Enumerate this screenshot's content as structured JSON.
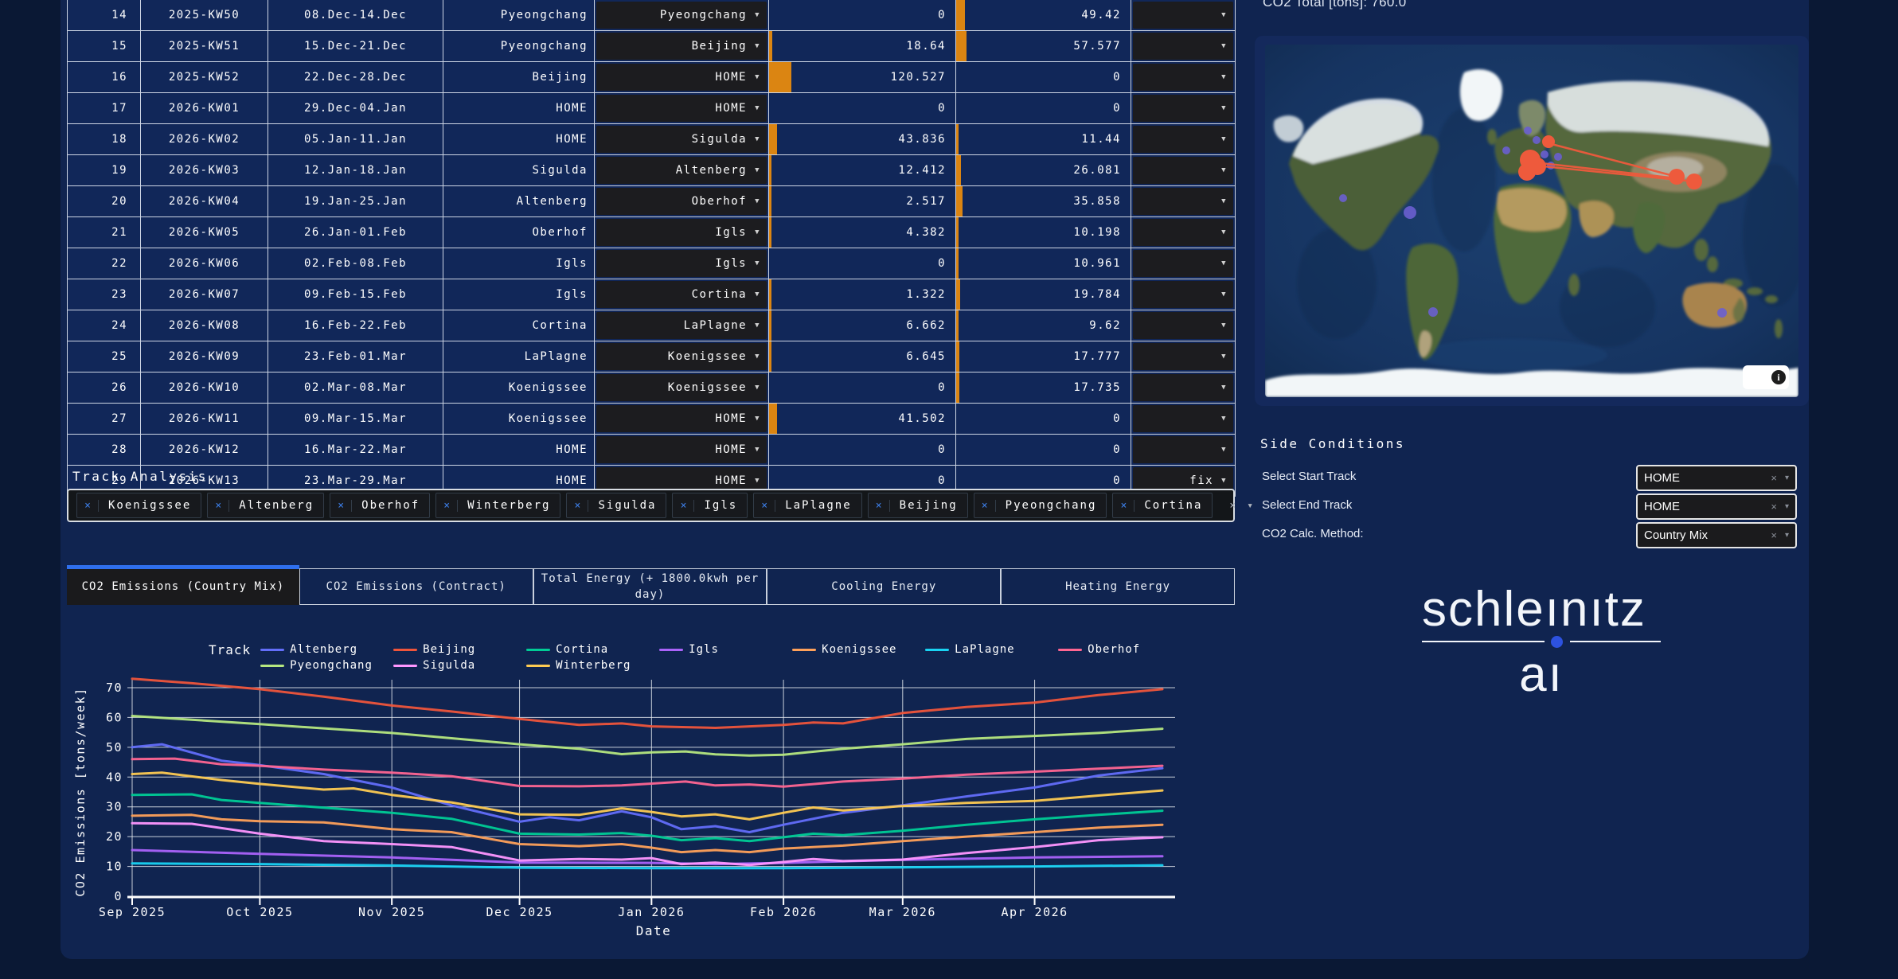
{
  "header": {
    "co2_total": "CO2 Total [tons]: 760.0"
  },
  "table": {
    "rows": [
      {
        "n": "14",
        "week": "2025-KW50",
        "dates": "08.Dec-14.Dec",
        "from": "Pyeongchang",
        "to": "Pyeongchang",
        "v1": "0",
        "v2": "49.42",
        "action": ""
      },
      {
        "n": "15",
        "week": "2025-KW51",
        "dates": "15.Dec-21.Dec",
        "from": "Pyeongchang",
        "to": "Beijing",
        "v1": "18.64",
        "v2": "57.577",
        "action": ""
      },
      {
        "n": "16",
        "week": "2025-KW52",
        "dates": "22.Dec-28.Dec",
        "from": "Beijing",
        "to": "HOME",
        "v1": "120.527",
        "v2": "0",
        "action": ""
      },
      {
        "n": "17",
        "week": "2026-KW01",
        "dates": "29.Dec-04.Jan",
        "from": "HOME",
        "to": "HOME",
        "v1": "0",
        "v2": "0",
        "action": ""
      },
      {
        "n": "18",
        "week": "2026-KW02",
        "dates": "05.Jan-11.Jan",
        "from": "HOME",
        "to": "Sigulda",
        "v1": "43.836",
        "v2": "11.44",
        "action": ""
      },
      {
        "n": "19",
        "week": "2026-KW03",
        "dates": "12.Jan-18.Jan",
        "from": "Sigulda",
        "to": "Altenberg",
        "v1": "12.412",
        "v2": "26.081",
        "action": ""
      },
      {
        "n": "20",
        "week": "2026-KW04",
        "dates": "19.Jan-25.Jan",
        "from": "Altenberg",
        "to": "Oberhof",
        "v1": "2.517",
        "v2": "35.858",
        "action": ""
      },
      {
        "n": "21",
        "week": "2026-KW05",
        "dates": "26.Jan-01.Feb",
        "from": "Oberhof",
        "to": "Igls",
        "v1": "4.382",
        "v2": "10.198",
        "action": ""
      },
      {
        "n": "22",
        "week": "2026-KW06",
        "dates": "02.Feb-08.Feb",
        "from": "Igls",
        "to": "Igls",
        "v1": "0",
        "v2": "10.961",
        "action": ""
      },
      {
        "n": "23",
        "week": "2026-KW07",
        "dates": "09.Feb-15.Feb",
        "from": "Igls",
        "to": "Cortina",
        "v1": "1.322",
        "v2": "19.784",
        "action": ""
      },
      {
        "n": "24",
        "week": "2026-KW08",
        "dates": "16.Feb-22.Feb",
        "from": "Cortina",
        "to": "LaPlagne",
        "v1": "6.662",
        "v2": "9.62",
        "action": ""
      },
      {
        "n": "25",
        "week": "2026-KW09",
        "dates": "23.Feb-01.Mar",
        "from": "LaPlagne",
        "to": "Koenigssee",
        "v1": "6.645",
        "v2": "17.777",
        "action": ""
      },
      {
        "n": "26",
        "week": "2026-KW10",
        "dates": "02.Mar-08.Mar",
        "from": "Koenigssee",
        "to": "Koenigssee",
        "v1": "0",
        "v2": "17.735",
        "action": ""
      },
      {
        "n": "27",
        "week": "2026-KW11",
        "dates": "09.Mar-15.Mar",
        "from": "Koenigssee",
        "to": "HOME",
        "v1": "41.502",
        "v2": "0",
        "action": ""
      },
      {
        "n": "28",
        "week": "2026-KW12",
        "dates": "16.Mar-22.Mar",
        "from": "HOME",
        "to": "HOME",
        "v1": "0",
        "v2": "0",
        "action": ""
      },
      {
        "n": "29",
        "week": "2026-KW13",
        "dates": "23.Mar-29.Mar",
        "from": "HOME",
        "to": "HOME",
        "v1": "0",
        "v2": "0",
        "action": "fix"
      }
    ]
  },
  "track_analysis": {
    "title": "Track Analysis",
    "selected": [
      "Koenigssee",
      "Altenberg",
      "Oberhof",
      "Winterberg",
      "Sigulda",
      "Igls",
      "LaPlagne",
      "Beijing",
      "Pyeongchang",
      "Cortina"
    ],
    "clear_icon": "×",
    "caret_icon": "▾"
  },
  "tabs": {
    "active": 0,
    "items": [
      {
        "label": "CO2 Emissions (Country Mix)"
      },
      {
        "label": "CO2 Emissions (Contract)"
      },
      {
        "label": "Total Energy (+ 1800.0kwh per day)"
      },
      {
        "label": "Cooling Energy"
      },
      {
        "label": "Heating Energy"
      }
    ]
  },
  "chart_data": {
    "type": "line",
    "legend_title": "Track",
    "xlabel": "Date",
    "ylabel": "CO2 Emissions [tons/week]",
    "ylim": [
      0,
      73
    ],
    "x_axis_note": "days since 2025-09-01, weekly data Sep 2025 - Apr 2026",
    "x_ticks": [
      {
        "label": "Sep 2025",
        "day": 0
      },
      {
        "label": "Oct 2025",
        "day": 30
      },
      {
        "label": "Nov 2025",
        "day": 61
      },
      {
        "label": "Dec 2025",
        "day": 91
      },
      {
        "label": "Jan 2026",
        "day": 122
      },
      {
        "label": "Feb 2026",
        "day": 153
      },
      {
        "label": "Mar 2026",
        "day": 181
      },
      {
        "label": "Apr 2026",
        "day": 212
      }
    ],
    "y_ticks": [
      0,
      10,
      20,
      30,
      40,
      50,
      60,
      70
    ],
    "series": [
      {
        "name": "Altenberg",
        "color": "#636EFA",
        "days": [
          0,
          7,
          21,
          30,
          45,
          61,
          75,
          91,
          98,
          105,
          115,
          122,
          129,
          137,
          145,
          153,
          167,
          181,
          196,
          212,
          227,
          242
        ],
        "values": [
          50,
          51,
          45.5,
          44,
          41,
          36.5,
          30.5,
          25,
          26.5,
          25.5,
          28.5,
          26.5,
          22.5,
          23.5,
          21.5,
          24,
          28,
          30.5,
          33.5,
          36.5,
          40.5,
          43
        ]
      },
      {
        "name": "Beijing",
        "color": "#EF553B",
        "days": [
          0,
          14,
          30,
          45,
          61,
          75,
          91,
          105,
          115,
          122,
          137,
          153,
          160,
          167,
          181,
          196,
          212,
          227,
          242
        ],
        "values": [
          73,
          71.5,
          69.5,
          67,
          64,
          62,
          59.5,
          57.5,
          58,
          57,
          56.5,
          57.5,
          58.3,
          58,
          61.5,
          63.5,
          65,
          67.5,
          69.5
        ]
      },
      {
        "name": "Cortina",
        "color": "#00CC96",
        "days": [
          0,
          14,
          21,
          30,
          45,
          61,
          75,
          91,
          105,
          115,
          122,
          129,
          137,
          145,
          153,
          160,
          167,
          181,
          196,
          212,
          227,
          242
        ],
        "values": [
          34,
          34.2,
          32.3,
          31.3,
          29.7,
          28,
          26,
          21,
          20.7,
          21.2,
          20.3,
          18.8,
          19.5,
          18.5,
          19.8,
          21,
          20.5,
          22,
          24,
          25.8,
          27.3,
          28.7
        ]
      },
      {
        "name": "Igls",
        "color": "#AB63FA",
        "days": [
          0,
          30,
          61,
          91,
          122,
          137,
          153,
          181,
          212,
          242
        ],
        "values": [
          15.5,
          14.2,
          13,
          11.3,
          11.2,
          10.8,
          11.2,
          12.2,
          13,
          13.4
        ]
      },
      {
        "name": "Koenigssee",
        "color": "#FFA15A",
        "days": [
          0,
          14,
          21,
          30,
          45,
          61,
          75,
          91,
          105,
          115,
          122,
          129,
          137,
          145,
          153,
          167,
          181,
          196,
          212,
          227,
          242
        ],
        "values": [
          27,
          27.3,
          25.8,
          25.2,
          24.8,
          22.5,
          21.5,
          17.5,
          16.8,
          17.5,
          16.3,
          14.8,
          15.5,
          14.8,
          16,
          17,
          18.5,
          20,
          21.5,
          23,
          24
        ]
      },
      {
        "name": "LaPlagne",
        "color": "#19D3F3",
        "days": [
          0,
          30,
          61,
          91,
          122,
          153,
          181,
          212,
          242
        ],
        "values": [
          11,
          10.8,
          10.3,
          9.6,
          9.4,
          9.4,
          9.7,
          10,
          10.4
        ]
      },
      {
        "name": "Oberhof",
        "color": "#FF6692",
        "days": [
          0,
          10,
          21,
          30,
          45,
          61,
          75,
          91,
          105,
          115,
          122,
          130,
          137,
          145,
          153,
          167,
          181,
          196,
          212,
          227,
          242
        ],
        "values": [
          46,
          46.2,
          44.3,
          43.8,
          42.5,
          41.5,
          40.3,
          37,
          36.9,
          37.2,
          37.8,
          38.5,
          37.2,
          37.5,
          36.8,
          38.5,
          39.5,
          40.8,
          41.8,
          42.8,
          43.8
        ]
      },
      {
        "name": "Pyeongchang",
        "color": "#B6E880",
        "days": [
          0,
          30,
          61,
          91,
          105,
          115,
          122,
          130,
          137,
          145,
          153,
          167,
          181,
          196,
          212,
          227,
          242
        ],
        "values": [
          60.5,
          57.8,
          54.8,
          51,
          49.5,
          47.7,
          48.3,
          48.6,
          47.6,
          47.2,
          47.5,
          49.5,
          51,
          52.8,
          53.8,
          54.8,
          56.2
        ]
      },
      {
        "name": "Sigulda",
        "color": "#FF97FF",
        "days": [
          0,
          14,
          30,
          45,
          61,
          75,
          91,
          105,
          115,
          122,
          129,
          137,
          145,
          153,
          160,
          167,
          181,
          196,
          212,
          227,
          242
        ],
        "values": [
          24.5,
          24.3,
          21,
          18.5,
          17.5,
          16.5,
          12,
          12.5,
          12.3,
          12.8,
          10.8,
          11.3,
          10.5,
          11.5,
          12.5,
          11.8,
          12.3,
          14.5,
          16.5,
          18.8,
          19.8
        ]
      },
      {
        "name": "Winterberg",
        "color": "#FECB52",
        "days": [
          0,
          7,
          21,
          30,
          45,
          52,
          61,
          75,
          91,
          105,
          115,
          122,
          129,
          137,
          145,
          153,
          160,
          167,
          181,
          196,
          212,
          227,
          242
        ],
        "values": [
          41,
          41.5,
          39,
          37.7,
          35.8,
          36.2,
          34,
          31.5,
          27.5,
          27.3,
          29.5,
          28.3,
          26.8,
          27.5,
          25.8,
          28,
          29.8,
          28.8,
          30.3,
          31.3,
          32,
          33.8,
          35.5
        ]
      }
    ]
  },
  "side_conditions": {
    "title": "Side Conditions",
    "fields": [
      {
        "label": "Select Start Track",
        "value": "HOME"
      },
      {
        "label": "Select End Track",
        "value": "HOME"
      },
      {
        "label": "CO2 Calc. Method:",
        "value": "Country Mix"
      }
    ],
    "clear_icon": "×",
    "caret_icon": "▾"
  },
  "map": {
    "info_icon": "i"
  },
  "logo": {
    "line1": "schleınıtz",
    "line2": "aı"
  },
  "ui_colors": {
    "accent_orange": "#DB8512",
    "accent_blue": "#2F6FED",
    "chip_x_blue": "#3D7FE8"
  }
}
